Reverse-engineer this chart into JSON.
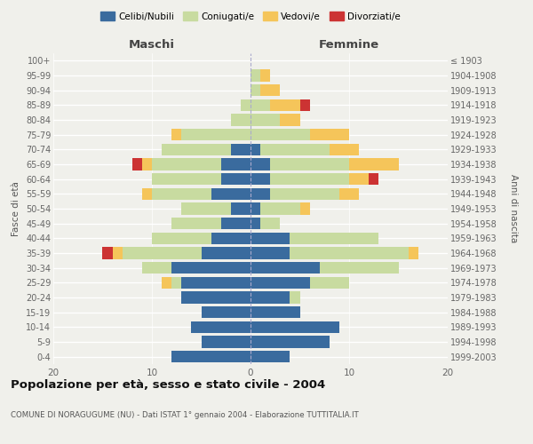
{
  "age_groups": [
    "0-4",
    "5-9",
    "10-14",
    "15-19",
    "20-24",
    "25-29",
    "30-34",
    "35-39",
    "40-44",
    "45-49",
    "50-54",
    "55-59",
    "60-64",
    "65-69",
    "70-74",
    "75-79",
    "80-84",
    "85-89",
    "90-94",
    "95-99",
    "100+"
  ],
  "birth_years": [
    "1999-2003",
    "1994-1998",
    "1989-1993",
    "1984-1988",
    "1979-1983",
    "1974-1978",
    "1969-1973",
    "1964-1968",
    "1959-1963",
    "1954-1958",
    "1949-1953",
    "1944-1948",
    "1939-1943",
    "1934-1938",
    "1929-1933",
    "1924-1928",
    "1919-1923",
    "1914-1918",
    "1909-1913",
    "1904-1908",
    "≤ 1903"
  ],
  "maschi": {
    "celibi": [
      8,
      5,
      6,
      5,
      7,
      7,
      8,
      5,
      4,
      3,
      2,
      4,
      3,
      3,
      2,
      0,
      0,
      0,
      0,
      0,
      0
    ],
    "coniugati": [
      0,
      0,
      0,
      0,
      0,
      1,
      3,
      8,
      6,
      5,
      5,
      6,
      7,
      7,
      7,
      7,
      2,
      1,
      0,
      0,
      0
    ],
    "vedovi": [
      0,
      0,
      0,
      0,
      0,
      1,
      0,
      1,
      0,
      0,
      0,
      1,
      0,
      1,
      0,
      1,
      0,
      0,
      0,
      0,
      0
    ],
    "divorziati": [
      0,
      0,
      0,
      0,
      0,
      0,
      0,
      1,
      0,
      0,
      0,
      0,
      0,
      1,
      0,
      0,
      0,
      0,
      0,
      0,
      0
    ]
  },
  "femmine": {
    "nubili": [
      4,
      8,
      9,
      5,
      4,
      6,
      7,
      4,
      4,
      1,
      1,
      2,
      2,
      2,
      1,
      0,
      0,
      0,
      0,
      0,
      0
    ],
    "coniugate": [
      0,
      0,
      0,
      0,
      1,
      4,
      8,
      12,
      9,
      2,
      4,
      7,
      8,
      8,
      7,
      6,
      3,
      2,
      1,
      1,
      0
    ],
    "vedove": [
      0,
      0,
      0,
      0,
      0,
      0,
      0,
      1,
      0,
      0,
      1,
      2,
      2,
      5,
      3,
      4,
      2,
      3,
      2,
      1,
      0
    ],
    "divorziate": [
      0,
      0,
      0,
      0,
      0,
      0,
      0,
      0,
      0,
      0,
      0,
      0,
      1,
      0,
      0,
      0,
      0,
      1,
      0,
      0,
      0
    ]
  },
  "colors": {
    "celibi_nubili": "#3a6b9e",
    "coniugati": "#c8dba0",
    "vedovi": "#f5c55a",
    "divorziati": "#cc3333"
  },
  "xlim": 20,
  "title": "Popolazione per età, sesso e stato civile - 2004",
  "subtitle": "COMUNE DI NORAGUGUME (NU) - Dati ISTAT 1° gennaio 2004 - Elaborazione TUTTITALIA.IT",
  "ylabel_left": "Fasce di età",
  "ylabel_right": "Anni di nascita",
  "xlabel_maschi": "Maschi",
  "xlabel_femmine": "Femmine",
  "legend_labels": [
    "Celibi/Nubili",
    "Coniugati/e",
    "Vedovi/e",
    "Divorziati/e"
  ],
  "bg_color": "#f0f0eb",
  "grid_color": "#ffffff",
  "bar_height": 0.8
}
